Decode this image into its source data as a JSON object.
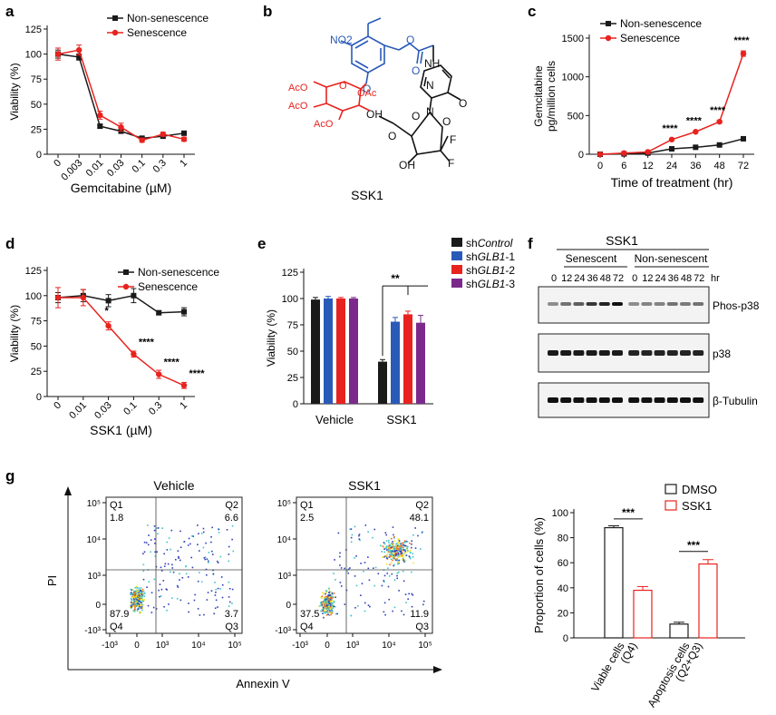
{
  "panel_letters": {
    "a": "a",
    "b": "b",
    "c": "c",
    "d": "d",
    "e": "e",
    "f": "f",
    "g": "g"
  },
  "colors": {
    "black": "#1a1a1a",
    "red": "#e8231f",
    "blue": "#2a5ab8",
    "purple": "#7b2a8c",
    "heat_low": "#2f3fb8",
    "heat_mid": "#3cc4c8",
    "heat_high": "#f7e21a",
    "heat_peak": "#f06a1a"
  },
  "chart_data": [
    {
      "id": "a",
      "type": "line",
      "categories": [
        "0",
        "0.003",
        "0.01",
        "0.03",
        "0.1",
        "0.3",
        "1"
      ],
      "xlabel": "Gemcitabine (µM)",
      "ylabel": "Viability (%)",
      "ylim": [
        0,
        125
      ],
      "yticks": [
        "0",
        "25",
        "50",
        "75",
        "100",
        "125"
      ],
      "legend_position": "top-right",
      "series": [
        {
          "name": "Non-senescence",
          "color": "#1a1a1a",
          "marker": "square",
          "values": [
            100,
            97,
            28,
            23,
            16,
            18,
            21
          ],
          "err": [
            4,
            3,
            2,
            2,
            2,
            2,
            2
          ]
        },
        {
          "name": "Senescence",
          "color": "#e8231f",
          "marker": "circle",
          "values": [
            100,
            104,
            39,
            27,
            14,
            20,
            15
          ],
          "err": [
            6,
            5,
            4,
            4,
            2,
            2,
            2
          ]
        }
      ]
    },
    {
      "id": "c",
      "type": "line",
      "categories": [
        "0",
        "6",
        "12",
        "24",
        "36",
        "48",
        "72"
      ],
      "xlabel": "Time of treatment (hr)",
      "ylabel": "Gemcitabine",
      "ylabel2": "pg/million cells",
      "ylim": [
        0,
        1500
      ],
      "yticks": [
        "0",
        "500",
        "1000",
        "1500"
      ],
      "legend_position": "top-left",
      "annotations": [
        "****",
        "****",
        "****",
        "****"
      ],
      "series": [
        {
          "name": "Non-senescence",
          "color": "#1a1a1a",
          "marker": "square",
          "values": [
            0,
            5,
            15,
            70,
            90,
            120,
            200
          ],
          "err": [
            0,
            0,
            0,
            5,
            5,
            8,
            10
          ]
        },
        {
          "name": "Senescence",
          "color": "#e8231f",
          "marker": "circle",
          "values": [
            0,
            15,
            30,
            190,
            290,
            420,
            1300
          ],
          "err": [
            0,
            2,
            3,
            10,
            10,
            15,
            35
          ]
        }
      ]
    },
    {
      "id": "d",
      "type": "line",
      "categories": [
        "0",
        "0.01",
        "0.03",
        "0.1",
        "0.3",
        "1"
      ],
      "xlabel": "SSK1 (µM)",
      "ylabel": "Viability (%)",
      "ylim": [
        0,
        125
      ],
      "yticks": [
        "0",
        "25",
        "50",
        "75",
        "100",
        "125"
      ],
      "legend_position": "top-right",
      "annotations": [
        "*",
        "****",
        "****",
        "****"
      ],
      "series": [
        {
          "name": "Non-senescence",
          "color": "#1a1a1a",
          "marker": "square",
          "values": [
            98,
            100,
            95,
            100,
            83,
            84
          ],
          "err": [
            5,
            6,
            6,
            7,
            2,
            4
          ]
        },
        {
          "name": "Senescence",
          "color": "#e8231f",
          "marker": "circle",
          "values": [
            98,
            98,
            70,
            42,
            22,
            11
          ],
          "err": [
            10,
            8,
            4,
            3,
            4,
            3
          ]
        }
      ]
    },
    {
      "id": "e",
      "type": "bar",
      "categories": [
        "Vehicle",
        "SSK1"
      ],
      "ylabel": "Viability (%)",
      "ylim": [
        0,
        125
      ],
      "yticks": [
        "0",
        "25",
        "50",
        "75",
        "100",
        "125"
      ],
      "legend_position": "top-right",
      "annotations": [
        "**"
      ],
      "legend_labels": [
        {
          "pre": "sh",
          "it": "Control",
          "post": ""
        },
        {
          "pre": "sh",
          "it": "GLB1",
          "post": "-1"
        },
        {
          "pre": "sh",
          "it": "GLB1",
          "post": "-2"
        },
        {
          "pre": "sh",
          "it": "GLB1",
          "post": "-3"
        }
      ],
      "series": [
        {
          "name": "shControl",
          "color": "#1a1a1a",
          "values": [
            99,
            40
          ],
          "err": [
            2,
            2
          ]
        },
        {
          "name": "shGLB1-1",
          "color": "#2a5ab8",
          "values": [
            100,
            78
          ],
          "err": [
            2,
            4
          ]
        },
        {
          "name": "shGLB1-2",
          "color": "#e8231f",
          "values": [
            100,
            85
          ],
          "err": [
            1,
            3
          ]
        },
        {
          "name": "shGLB1-3",
          "color": "#7b2a8c",
          "values": [
            100,
            77
          ],
          "err": [
            1,
            7
          ]
        }
      ]
    },
    {
      "id": "g_bar",
      "type": "bar",
      "categories": [
        "Viable cells (Q4)",
        "Apoptosis cells (Q2+Q3)"
      ],
      "category_lines": [
        [
          "Viable cells",
          "(Q4)"
        ],
        [
          "Apoptosis cells",
          "(Q2+Q3)"
        ]
      ],
      "ylabel": "Proportion of cells (%)",
      "ylim": [
        0,
        100
      ],
      "yticks": [
        "0",
        "20",
        "40",
        "60",
        "80",
        "100"
      ],
      "legend_position": "top-right",
      "annotations": [
        "***",
        "***"
      ],
      "series": [
        {
          "name": "DMSO",
          "color": "#1a1a1a",
          "values": [
            88,
            11
          ],
          "err": [
            1.5,
            1.5
          ]
        },
        {
          "name": "SSK1",
          "color": "#e8231f",
          "values": [
            38,
            59
          ],
          "err": [
            3,
            3.5
          ]
        }
      ]
    }
  ],
  "structure_b": {
    "caption": "SSK1",
    "labels": [
      "NO2",
      "O",
      "O",
      "O",
      "NH",
      "N",
      "N",
      "O",
      "O",
      "O",
      "O",
      "F",
      "F",
      "OH",
      "OH",
      "AcO",
      "AcO",
      "AcO",
      "OAc",
      "O"
    ]
  },
  "blot_f": {
    "title": "SSK1",
    "groups": [
      "Senescent",
      "Non-senescent"
    ],
    "timepoints": [
      "0",
      "12",
      "24",
      "36",
      "48",
      "72",
      "0",
      "12",
      "24",
      "36",
      "48",
      "72"
    ],
    "unit": "hr",
    "rows": [
      {
        "label": "Phos-p38",
        "intensity": [
          0.35,
          0.5,
          0.6,
          0.8,
          0.9,
          1.0,
          0.35,
          0.4,
          0.4,
          0.5,
          0.45,
          0.5
        ]
      },
      {
        "label": "p38",
        "intensity": [
          0.95,
          0.95,
          0.95,
          0.95,
          0.95,
          0.95,
          0.9,
          0.9,
          0.9,
          0.9,
          0.9,
          0.9
        ]
      },
      {
        "label": "β-Tubulin",
        "intensity": [
          1,
          1,
          1,
          1,
          1,
          1,
          1,
          1,
          1,
          1,
          1,
          1
        ]
      }
    ]
  },
  "flow_g": {
    "xlabel": "Annexin V",
    "ylabel": "PI",
    "xticks": [
      "-10³",
      "0",
      "10³",
      "10⁴",
      "10⁵"
    ],
    "yticks": [
      "10⁵",
      "10⁴",
      "10³",
      "0",
      "-10³"
    ],
    "plots": [
      {
        "title": "Vehicle",
        "q1_label": "Q1",
        "q1": "1.8",
        "q2_label": "Q2",
        "q2": "6.6",
        "q3_label": "Q3",
        "q3": "3.7",
        "q4_label": "Q4",
        "q4": "87.9"
      },
      {
        "title": "SSK1",
        "q1_label": "Q1",
        "q1": "2.5",
        "q2_label": "Q2",
        "q2": "48.1",
        "q3_label": "Q3",
        "q3": "11.9",
        "q4_label": "Q4",
        "q4": "37.5"
      }
    ]
  }
}
